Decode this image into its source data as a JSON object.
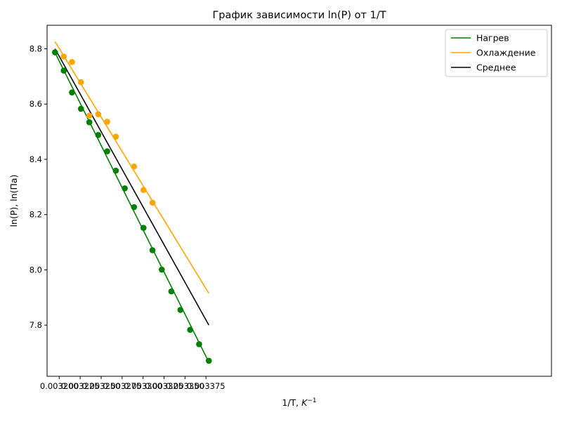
{
  "chart_data": {
    "type": "line",
    "title": "График зависимости ln(P) от 1/T",
    "xlabel": "1/T, K⁻¹",
    "ylabel": "ln(P), ln(Па)",
    "xlim": [
      0.0031855,
      0.003787
    ],
    "ylim": [
      7.615,
      8.885
    ],
    "xticks": [
      {
        "v": 0.0032,
        "label": "0.003200"
      },
      {
        "v": 0.003225,
        "label": "0.003225"
      },
      {
        "v": 0.00325,
        "label": "0.003250"
      },
      {
        "v": 0.003275,
        "label": "0.003275"
      },
      {
        "v": 0.0033,
        "label": "0.003300"
      },
      {
        "v": 0.003325,
        "label": "0.003325"
      },
      {
        "v": 0.00335,
        "label": "0.003350"
      },
      {
        "v": 0.003375,
        "label": "0.003375"
      }
    ],
    "yticks": [
      {
        "v": 7.8,
        "label": "7.8"
      },
      {
        "v": 8.0,
        "label": "8.0"
      },
      {
        "v": 8.2,
        "label": "8.2"
      },
      {
        "v": 8.4,
        "label": "8.4"
      },
      {
        "v": 8.6,
        "label": "8.6"
      },
      {
        "v": 8.8,
        "label": "8.8"
      }
    ],
    "grid": false,
    "legend_position": "top-right",
    "series": [
      {
        "name": "Нагрев",
        "color": "#008000",
        "points": [
          [
            0.003195,
            8.787
          ],
          [
            0.0032054,
            8.721
          ],
          [
            0.0032152,
            8.642
          ],
          [
            0.0032259,
            8.583
          ],
          [
            0.0032359,
            8.534
          ],
          [
            0.0032465,
            8.488
          ],
          [
            0.0032572,
            8.429
          ],
          [
            0.0032675,
            8.359
          ],
          [
            0.0032782,
            8.295
          ],
          [
            0.0032892,
            8.227
          ],
          [
            0.0033005,
            8.152
          ],
          [
            0.0033112,
            8.071
          ],
          [
            0.0033223,
            8.001
          ],
          [
            0.0033337,
            7.922
          ],
          [
            0.0033445,
            7.855
          ],
          [
            0.0033561,
            7.783
          ],
          [
            0.0033668,
            7.731
          ],
          [
            0.0033784,
            7.671
          ]
        ],
        "fit": [
          [
            0.003195,
            8.786
          ],
          [
            0.0033784,
            7.666
          ]
        ]
      },
      {
        "name": "Охлаждение",
        "color": "#ffa500",
        "points": [
          [
            0.0032054,
            8.772
          ],
          [
            0.0032152,
            8.752
          ],
          [
            0.0032259,
            8.679
          ],
          [
            0.0032359,
            8.558
          ],
          [
            0.0032465,
            8.563
          ],
          [
            0.0032572,
            8.536
          ],
          [
            0.0032675,
            8.482
          ],
          [
            0.0032892,
            8.374
          ],
          [
            0.0033005,
            8.289
          ],
          [
            0.0033112,
            8.243
          ]
        ],
        "fit": [
          [
            0.003195,
            8.826
          ],
          [
            0.0033784,
            7.915
          ]
        ]
      },
      {
        "name": "Среднее",
        "color": "#000000",
        "points": [],
        "fit": [
          [
            0.003195,
            8.8
          ],
          [
            0.0033784,
            7.8
          ]
        ]
      }
    ]
  }
}
